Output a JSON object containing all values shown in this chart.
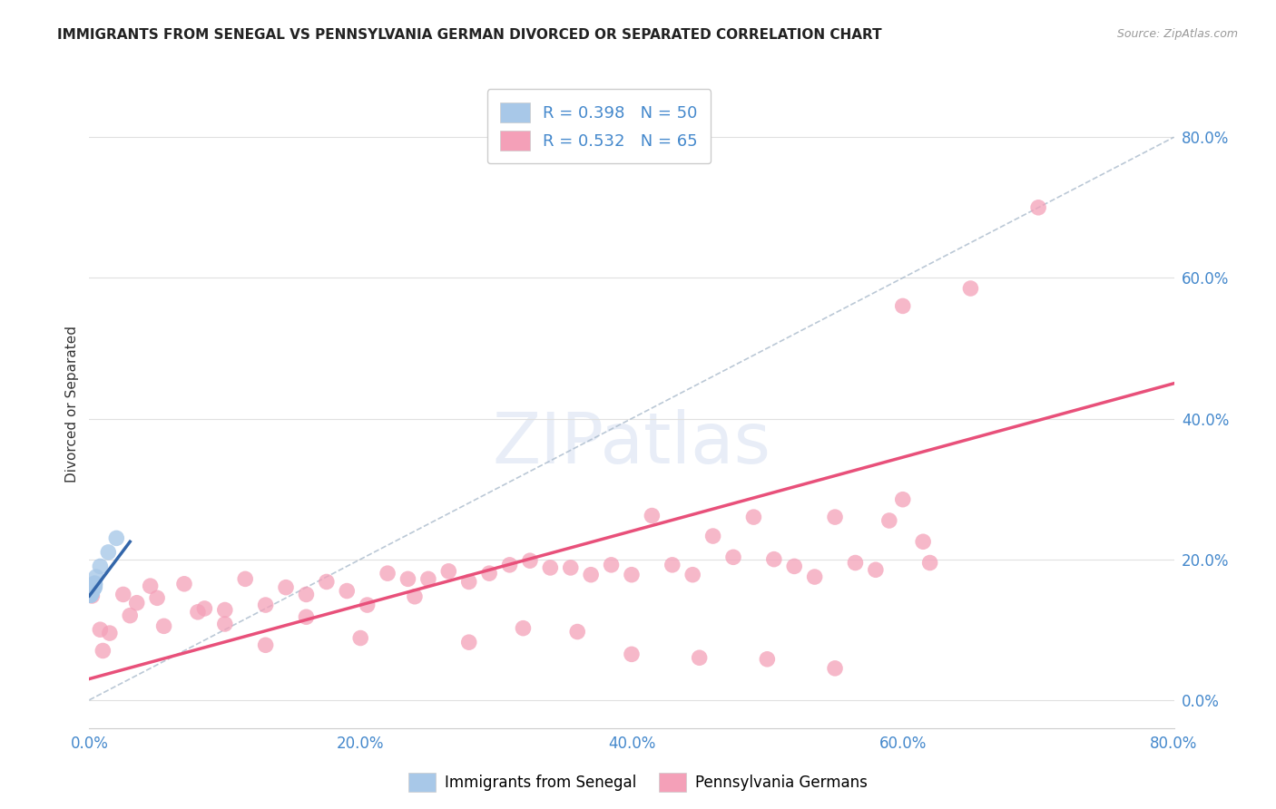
{
  "title": "IMMIGRANTS FROM SENEGAL VS PENNSYLVANIA GERMAN DIVORCED OR SEPARATED CORRELATION CHART",
  "source": "Source: ZipAtlas.com",
  "ylabel": "Divorced or Separated",
  "xlim": [
    0.0,
    0.8
  ],
  "ylim": [
    -0.04,
    0.88
  ],
  "yticks": [
    0.0,
    0.2,
    0.4,
    0.6,
    0.8
  ],
  "xticks": [
    0.0,
    0.2,
    0.4,
    0.6,
    0.8
  ],
  "legend_entry1_label": "R = 0.398   N = 50",
  "legend_entry2_label": "R = 0.532   N = 65",
  "scatter1_color": "#a8c8e8",
  "scatter2_color": "#f4a0b8",
  "line1_color": "#3366aa",
  "line2_color": "#e8507a",
  "watermark": "ZIPatlas",
  "senegal_x": [
    0.001,
    0.002,
    0.003,
    0.002,
    0.001,
    0.004,
    0.003,
    0.002,
    0.001,
    0.002,
    0.003,
    0.002,
    0.001,
    0.003,
    0.002,
    0.003,
    0.002,
    0.004,
    0.003,
    0.002,
    0.001,
    0.004,
    0.003,
    0.002,
    0.001,
    0.003,
    0.002,
    0.001,
    0.002,
    0.004,
    0.003,
    0.001,
    0.002,
    0.003,
    0.002,
    0.004,
    0.003,
    0.002,
    0.002,
    0.003,
    0.002,
    0.001,
    0.003,
    0.002,
    0.003,
    0.001,
    0.014,
    0.02,
    0.008,
    0.005
  ],
  "senegal_y": [
    0.16,
    0.162,
    0.164,
    0.158,
    0.156,
    0.16,
    0.163,
    0.155,
    0.152,
    0.158,
    0.161,
    0.156,
    0.149,
    0.163,
    0.157,
    0.16,
    0.155,
    0.165,
    0.162,
    0.158,
    0.152,
    0.166,
    0.16,
    0.156,
    0.15,
    0.162,
    0.157,
    0.151,
    0.156,
    0.164,
    0.161,
    0.15,
    0.155,
    0.16,
    0.154,
    0.163,
    0.16,
    0.156,
    0.153,
    0.158,
    0.154,
    0.149,
    0.159,
    0.153,
    0.16,
    0.15,
    0.21,
    0.23,
    0.19,
    0.175
  ],
  "pagerman_x": [
    0.002,
    0.008,
    0.015,
    0.025,
    0.035,
    0.045,
    0.055,
    0.07,
    0.085,
    0.1,
    0.115,
    0.13,
    0.145,
    0.16,
    0.175,
    0.19,
    0.205,
    0.22,
    0.235,
    0.25,
    0.265,
    0.28,
    0.295,
    0.31,
    0.325,
    0.34,
    0.355,
    0.37,
    0.385,
    0.4,
    0.415,
    0.43,
    0.445,
    0.46,
    0.475,
    0.49,
    0.505,
    0.52,
    0.535,
    0.55,
    0.565,
    0.58,
    0.59,
    0.6,
    0.615,
    0.62,
    0.01,
    0.03,
    0.05,
    0.08,
    0.1,
    0.13,
    0.16,
    0.2,
    0.24,
    0.28,
    0.32,
    0.36,
    0.4,
    0.45,
    0.5,
    0.55,
    0.6,
    0.65,
    0.7
  ],
  "pagerman_y": [
    0.148,
    0.1,
    0.095,
    0.15,
    0.138,
    0.162,
    0.105,
    0.165,
    0.13,
    0.128,
    0.172,
    0.135,
    0.16,
    0.15,
    0.168,
    0.155,
    0.135,
    0.18,
    0.172,
    0.172,
    0.183,
    0.168,
    0.18,
    0.192,
    0.198,
    0.188,
    0.188,
    0.178,
    0.192,
    0.178,
    0.262,
    0.192,
    0.178,
    0.233,
    0.203,
    0.26,
    0.2,
    0.19,
    0.175,
    0.26,
    0.195,
    0.185,
    0.255,
    0.285,
    0.225,
    0.195,
    0.07,
    0.12,
    0.145,
    0.125,
    0.108,
    0.078,
    0.118,
    0.088,
    0.147,
    0.082,
    0.102,
    0.097,
    0.065,
    0.06,
    0.058,
    0.045,
    0.56,
    0.585,
    0.7
  ],
  "line1_x": [
    0.0,
    0.03
  ],
  "line1_y": [
    0.148,
    0.225
  ],
  "line2_x": [
    0.0,
    0.8
  ],
  "line2_y": [
    0.03,
    0.45
  ],
  "dashed_line_x": [
    0.0,
    0.8
  ],
  "dashed_line_y": [
    0.0,
    0.8
  ],
  "background_color": "#ffffff",
  "grid_color": "#e0e0e0",
  "title_color": "#222222",
  "tick_color": "#4488cc"
}
